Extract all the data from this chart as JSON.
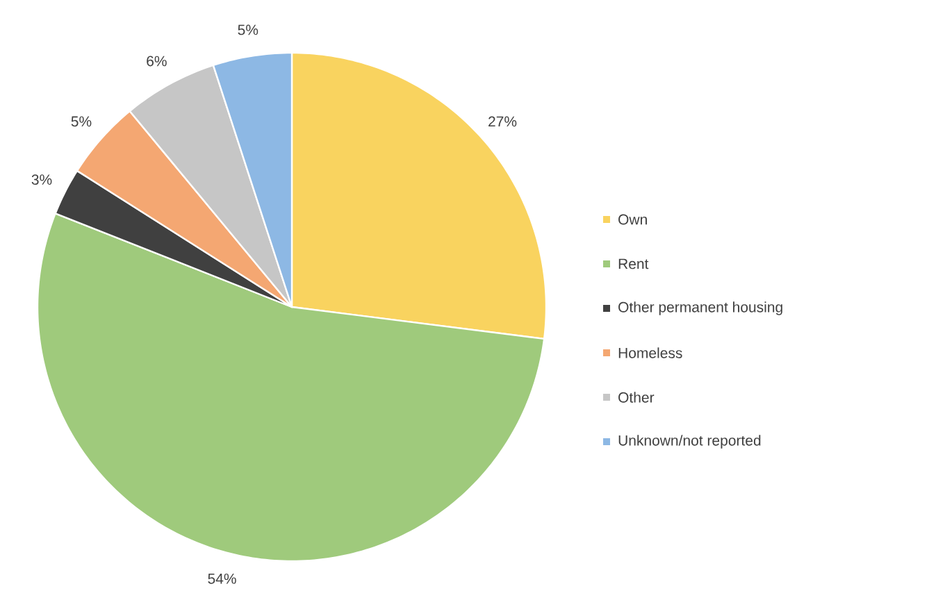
{
  "chart_data": {
    "type": "pie",
    "categories": [
      "Own",
      "Rent",
      "Other permanent housing",
      "Homeless",
      "Other",
      "Unknown/not reported"
    ],
    "values": [
      27,
      54,
      3,
      5,
      6,
      5
    ],
    "value_labels": [
      "27%",
      "54%",
      "3%",
      "5%",
      "6%",
      "5%"
    ],
    "colors": [
      "#f9d35f",
      "#9fca7c",
      "#404040",
      "#f4a772",
      "#c6c6c6",
      "#8db8e4"
    ],
    "legend": "right"
  }
}
